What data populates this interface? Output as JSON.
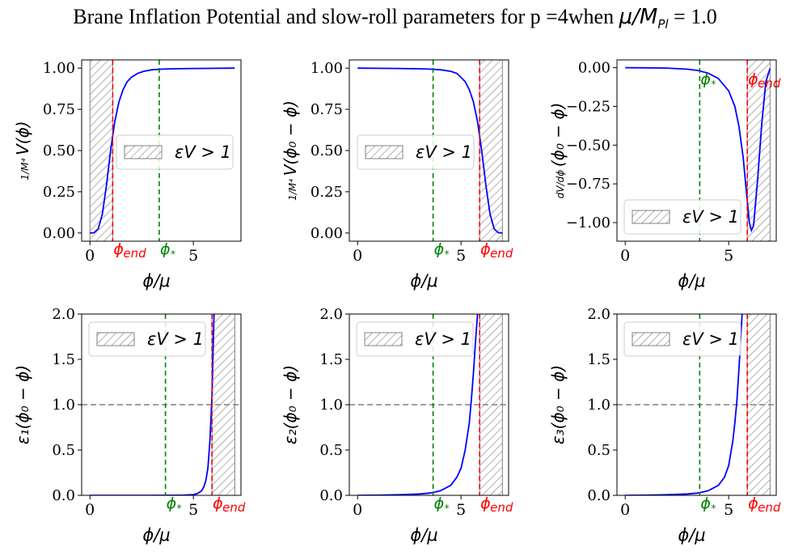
{
  "figure": {
    "title_prefix": "Brane Inflation Potential and slow-roll parameters for p =4when ",
    "title_math": "μ/M",
    "title_math_sub": "Pl",
    "title_suffix": " = 1.0",
    "colors": {
      "curve": "#0000ff",
      "phi_end": "#ff0000",
      "phi_star": "#008000",
      "hatch": "#808080",
      "threshold": "#808080"
    }
  },
  "chart_data": [
    {
      "type": "line",
      "id": "V",
      "xlabel": "ϕ/μ",
      "ylabel": "V(ϕ)",
      "ylabel_prefix": "1/M⁴",
      "xlim": [
        -0.4,
        7.3
      ],
      "ylim": [
        -0.05,
        1.05
      ],
      "xticks": [
        0,
        5
      ],
      "xtick_labels": [
        "0",
        "5"
      ],
      "yticks": [
        0.0,
        0.25,
        0.5,
        0.75,
        1.0
      ],
      "ytick_labels": [
        "0.00",
        "0.25",
        "0.50",
        "0.75",
        "1.00"
      ],
      "series": [
        {
          "x": [
            0,
            0.2,
            0.4,
            0.6,
            0.8,
            1.0,
            1.2,
            1.4,
            1.6,
            1.8,
            2.0,
            2.3,
            2.6,
            3.0,
            3.5,
            4.0,
            5.0,
            6.0,
            7.0
          ],
          "y": [
            0.0,
            0.0016,
            0.025,
            0.115,
            0.29,
            0.5,
            0.675,
            0.795,
            0.87,
            0.918,
            0.944,
            0.968,
            0.981,
            0.99,
            0.994,
            0.996,
            0.998,
            0.999,
            1.0
          ]
        }
      ],
      "phi_end": 1.1,
      "phi_star": 3.35,
      "phi_end_label": "ϕend",
      "phi_star_label": "ϕ*",
      "hatch_range": [
        0,
        1.1
      ],
      "legend_label": "εV > 1",
      "legend_loc": "center right"
    },
    {
      "type": "line",
      "id": "V_rev",
      "xlabel": "ϕ/μ",
      "ylabel": "V(ϕ₀ − ϕ)",
      "ylabel_prefix": "1/M⁴",
      "xlim": [
        -0.4,
        7.3
      ],
      "ylim": [
        -0.05,
        1.05
      ],
      "xticks": [
        0,
        5
      ],
      "xtick_labels": [
        "0",
        "5"
      ],
      "yticks": [
        0.0,
        0.25,
        0.5,
        0.75,
        1.0
      ],
      "ytick_labels": [
        "0.00",
        "0.25",
        "0.50",
        "0.75",
        "1.00"
      ],
      "series": [
        {
          "x": [
            0,
            1.0,
            2.0,
            3.0,
            3.5,
            4.0,
            4.5,
            4.8,
            5.0,
            5.2,
            5.4,
            5.6,
            5.8,
            6.0,
            6.2,
            6.4,
            6.6,
            6.8,
            7.0
          ],
          "y": [
            1.0,
            0.999,
            0.998,
            0.996,
            0.994,
            0.99,
            0.981,
            0.968,
            0.944,
            0.918,
            0.87,
            0.795,
            0.675,
            0.5,
            0.29,
            0.115,
            0.025,
            0.0016,
            0.0
          ]
        }
      ],
      "phi_end": 5.9,
      "phi_star": 3.65,
      "phi_end_label": "ϕend",
      "phi_star_label": "ϕ*",
      "hatch_range": [
        5.9,
        7.0
      ],
      "legend_label": "εV > 1",
      "legend_loc": "center left"
    },
    {
      "type": "line",
      "id": "dV",
      "xlabel": "ϕ/μ",
      "ylabel": "(ϕ₀ − ϕ)",
      "ylabel_prefix": "dV/dϕ",
      "xlim": [
        -0.4,
        7.3
      ],
      "ylim": [
        -1.12,
        0.05
      ],
      "xticks": [
        0,
        5
      ],
      "xtick_labels": [
        "0",
        "5"
      ],
      "yticks": [
        0.0,
        -0.25,
        -0.5,
        -0.75,
        -1.0
      ],
      "ytick_labels": [
        "0.00",
        "−0.25",
        "−0.50",
        "−0.75",
        "−1.00"
      ],
      "series": [
        {
          "x": [
            0,
            1.0,
            2.0,
            3.0,
            3.5,
            4.0,
            4.5,
            5.0,
            5.3,
            5.5,
            5.7,
            5.8,
            5.9,
            6.0,
            6.1,
            6.2,
            6.4,
            6.6,
            6.8,
            7.0
          ],
          "y": [
            0.0,
            -0.001,
            -0.003,
            -0.01,
            -0.018,
            -0.035,
            -0.07,
            -0.15,
            -0.25,
            -0.38,
            -0.58,
            -0.72,
            -0.86,
            -1.0,
            -1.05,
            -1.02,
            -0.72,
            -0.36,
            -0.09,
            -0.005
          ]
        }
      ],
      "phi_end": 5.9,
      "phi_star": 3.6,
      "phi_end_label": "ϕend",
      "phi_star_label": "ϕ*",
      "hatch_range": [
        5.9,
        7.0
      ],
      "legend_label": "εV > 1",
      "legend_loc": "lower left"
    },
    {
      "type": "line",
      "id": "eps1",
      "xlabel": "ϕ/μ",
      "ylabel": "ε₁(ϕ₀ − ϕ)",
      "xlim": [
        -0.4,
        7.3
      ],
      "ylim": [
        0.0,
        2.0
      ],
      "xticks": [
        0,
        5
      ],
      "xtick_labels": [
        "0",
        "5"
      ],
      "yticks": [
        0.0,
        0.5,
        1.0,
        1.5,
        2.0
      ],
      "ytick_labels": [
        "0.0",
        "0.5",
        "1.0",
        "1.5",
        "2.0"
      ],
      "series": [
        {
          "x": [
            0,
            1.0,
            2.0,
            3.0,
            4.0,
            4.5,
            5.0,
            5.2,
            5.4,
            5.5,
            5.6,
            5.7,
            5.8,
            5.85,
            5.9,
            5.95,
            6.0
          ],
          "y": [
            0.0,
            0.0,
            0.0,
            0.0,
            0.0005,
            0.002,
            0.008,
            0.02,
            0.05,
            0.09,
            0.16,
            0.3,
            0.6,
            0.85,
            1.1,
            1.6,
            2.0
          ]
        }
      ],
      "phi_end": 5.9,
      "phi_star": 3.65,
      "phi_end_label": "ϕend",
      "phi_star_label": "ϕ*",
      "hatch_range": [
        5.9,
        7.0
      ],
      "threshold": 1.0,
      "legend_label": "εV > 1",
      "legend_loc": "upper left"
    },
    {
      "type": "line",
      "id": "eps2",
      "xlabel": "ϕ/μ",
      "ylabel": "ε₂(ϕ₀ − ϕ)",
      "xlim": [
        -0.4,
        7.3
      ],
      "ylim": [
        0.0,
        2.0
      ],
      "xticks": [
        0,
        5
      ],
      "xtick_labels": [
        "0",
        "5"
      ],
      "yticks": [
        0.0,
        0.5,
        1.0,
        1.5,
        2.0
      ],
      "ytick_labels": [
        "0.0",
        "0.5",
        "1.0",
        "1.5",
        "2.0"
      ],
      "series": [
        {
          "x": [
            0,
            1.0,
            2.0,
            3.0,
            3.5,
            4.0,
            4.5,
            4.8,
            5.0,
            5.2,
            5.4,
            5.5,
            5.6,
            5.7,
            5.8
          ],
          "y": [
            0.0,
            0.002,
            0.006,
            0.015,
            0.025,
            0.05,
            0.11,
            0.2,
            0.3,
            0.5,
            0.8,
            1.05,
            1.35,
            1.7,
            2.0
          ]
        }
      ],
      "phi_end": 5.9,
      "phi_star": 3.65,
      "phi_end_label": "ϕend",
      "phi_star_label": "ϕ*",
      "hatch_range": [
        5.9,
        7.0
      ],
      "threshold": 1.0,
      "legend_label": "εV > 1",
      "legend_loc": "upper left"
    },
    {
      "type": "line",
      "id": "eps3",
      "xlabel": "ϕ/μ",
      "ylabel": "ε₃(ϕ₀ − ϕ)",
      "xlim": [
        -0.4,
        7.3
      ],
      "ylim": [
        0.0,
        2.0
      ],
      "xticks": [
        0,
        5
      ],
      "xtick_labels": [
        "0",
        "5"
      ],
      "yticks": [
        0.0,
        0.5,
        1.0,
        1.5,
        2.0
      ],
      "ytick_labels": [
        "0.0",
        "0.5",
        "1.0",
        "1.5",
        "2.0"
      ],
      "series": [
        {
          "x": [
            0,
            1.0,
            2.0,
            3.0,
            3.5,
            4.0,
            4.5,
            4.8,
            5.0,
            5.2,
            5.3,
            5.4,
            5.5,
            5.6,
            5.65
          ],
          "y": [
            0.0,
            0.002,
            0.006,
            0.015,
            0.025,
            0.05,
            0.11,
            0.2,
            0.33,
            0.6,
            0.8,
            1.05,
            1.4,
            1.8,
            2.0
          ]
        }
      ],
      "phi_end": 5.9,
      "phi_star": 3.6,
      "phi_end_label": "ϕend",
      "phi_star_label": "ϕ*",
      "hatch_range": [
        5.9,
        7.0
      ],
      "threshold": 1.0,
      "legend_label": "εV > 1",
      "legend_loc": "upper left"
    }
  ]
}
